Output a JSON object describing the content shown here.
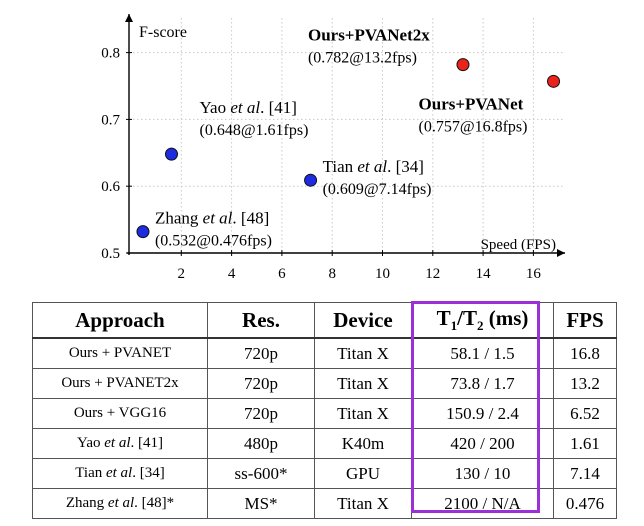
{
  "chart_data": {
    "type": "scatter",
    "ylabel": "F-score",
    "xlabel": "Speed (FPS)",
    "xlim": [
      0,
      17.5
    ],
    "ylim": [
      0.5,
      0.85
    ],
    "xticks": [
      2,
      4,
      6,
      8,
      10,
      12,
      14,
      16
    ],
    "yticks": [
      0.5,
      0.6,
      0.7,
      0.8
    ],
    "grid": true,
    "points": [
      {
        "name_pre": "Ours+PVANet2x",
        "name_em": "",
        "name_post": "",
        "value_label": "(0.782@13.2fps)",
        "x": 13.2,
        "y": 0.782,
        "color": "#e8241c",
        "bold": true,
        "label_pos": "upper-left"
      },
      {
        "name_pre": "Ours+PVANet",
        "name_em": "",
        "name_post": "",
        "value_label": "(0.757@16.8fps)",
        "x": 16.8,
        "y": 0.757,
        "color": "#e8241c",
        "bold": true,
        "label_pos": "below-left"
      },
      {
        "name_pre": "Yao ",
        "name_em": "et al",
        "name_post": ". [41]",
        "value_label": "(0.648@1.61fps)",
        "x": 1.61,
        "y": 0.648,
        "color": "#1f2be0",
        "bold": false,
        "label_pos": "above-right"
      },
      {
        "name_pre": "Tian ",
        "name_em": "et al",
        "name_post": ". [34]",
        "value_label": "(0.609@7.14fps)",
        "x": 7.14,
        "y": 0.609,
        "color": "#1f2be0",
        "bold": false,
        "label_pos": "right"
      },
      {
        "name_pre": "Zhang ",
        "name_em": "et al",
        "name_post": ". [48]",
        "value_label": "(0.532@0.476fps)",
        "x": 0.476,
        "y": 0.532,
        "color": "#1f2be0",
        "bold": false,
        "label_pos": "right"
      }
    ]
  },
  "table": {
    "headers": [
      "Approach",
      "Res.",
      "Device",
      "T1/T2 (ms)",
      "FPS"
    ],
    "highlight_color": "#9b30d9",
    "rows": [
      {
        "approach_pre": "Ours + PVANET",
        "approach_em": "",
        "approach_post": "",
        "res": "720p",
        "device": "Titan X",
        "t": "58.1 / 1.5",
        "fps": "16.8"
      },
      {
        "approach_pre": "Ours + PVANET2x",
        "approach_em": "",
        "approach_post": "",
        "res": "720p",
        "device": "Titan X",
        "t": "73.8 / 1.7",
        "fps": "13.2"
      },
      {
        "approach_pre": "Ours + VGG16",
        "approach_em": "",
        "approach_post": "",
        "res": "720p",
        "device": "Titan X",
        "t": "150.9 / 2.4",
        "fps": "6.52"
      },
      {
        "approach_pre": "Yao ",
        "approach_em": "et al",
        "approach_post": ". [41]",
        "res": "480p",
        "device": "K40m",
        "t": "420 / 200",
        "fps": "1.61"
      },
      {
        "approach_pre": "Tian ",
        "approach_em": "et al",
        "approach_post": ". [34]",
        "res": "ss-600*",
        "device": "GPU",
        "t": "130 / 10",
        "fps": "7.14"
      },
      {
        "approach_pre": "Zhang ",
        "approach_em": "et al",
        "approach_post": ". [48]*",
        "res": "MS*",
        "device": "Titan X",
        "t": "2100 / N/A",
        "fps": "0.476"
      }
    ]
  }
}
